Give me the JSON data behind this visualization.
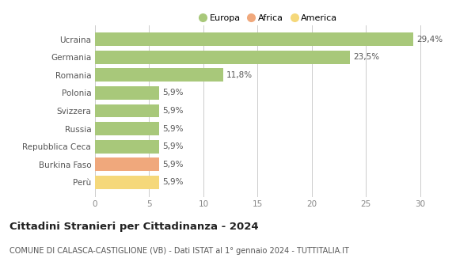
{
  "categories": [
    "Perù",
    "Burkina Faso",
    "Repubblica Ceca",
    "Russia",
    "Svizzera",
    "Polonia",
    "Romania",
    "Germania",
    "Ucraina"
  ],
  "values": [
    5.9,
    5.9,
    5.9,
    5.9,
    5.9,
    5.9,
    11.8,
    23.5,
    29.4
  ],
  "labels": [
    "5,9%",
    "5,9%",
    "5,9%",
    "5,9%",
    "5,9%",
    "5,9%",
    "11,8%",
    "23,5%",
    "29,4%"
  ],
  "bar_colors": [
    "#f5d87a",
    "#f0a87c",
    "#a8c87a",
    "#a8c87a",
    "#a8c87a",
    "#a8c87a",
    "#a8c87a",
    "#a8c87a",
    "#a8c87a"
  ],
  "legend_items": [
    {
      "label": "Europa",
      "color": "#a8c87a"
    },
    {
      "label": "Africa",
      "color": "#f0a87c"
    },
    {
      "label": "America",
      "color": "#f5d87a"
    }
  ],
  "title": "Cittadini Stranieri per Cittadinanza - 2024",
  "subtitle": "COMUNE DI CALASCA-CASTIGLIONE (VB) - Dati ISTAT al 1° gennaio 2024 - TUTTITALIA.IT",
  "xlim": [
    0,
    32
  ],
  "xticks": [
    0,
    5,
    10,
    15,
    20,
    25,
    30
  ],
  "background_color": "#ffffff",
  "bar_height": 0.75,
  "grid_color": "#cccccc",
  "label_fontsize": 7.5,
  "tick_fontsize": 7.5,
  "title_fontsize": 9.5,
  "subtitle_fontsize": 7
}
